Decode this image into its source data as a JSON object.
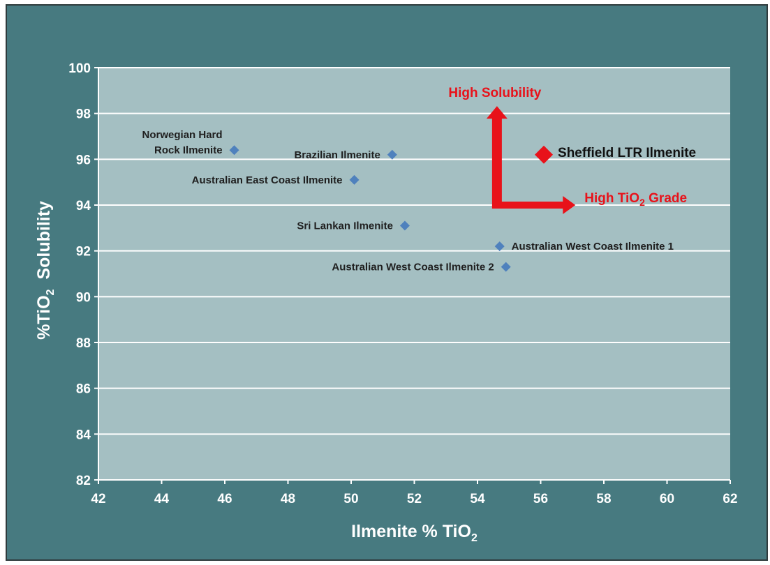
{
  "colors": {
    "background": "#477a80",
    "plot_area": "#a4bfc2",
    "gridline": "#ffffff",
    "point": "#4f81bd",
    "highlight": "#e8121a",
    "label_text": "#1f1f1f"
  },
  "chart_data": {
    "type": "scatter",
    "title": "",
    "xlabel": "Ilmenite % TiO",
    "xlabel_sub": "2",
    "ylabel": "%TiO",
    "ylabel_sub": "2",
    "ylabel_suffix": "Solubility",
    "xlim": [
      42,
      62
    ],
    "ylim": [
      82,
      100
    ],
    "x_ticks": [
      42,
      44,
      46,
      48,
      50,
      52,
      54,
      56,
      58,
      60,
      62
    ],
    "y_ticks": [
      82,
      84,
      86,
      88,
      90,
      92,
      94,
      96,
      98,
      100
    ],
    "grid": true,
    "points": [
      {
        "label": [
          "Norwegian Hard",
          "Rock Ilmenite"
        ],
        "x": 46.3,
        "y": 96.4,
        "marker": "diamond",
        "color": "#4f81bd",
        "label_pos": "left"
      },
      {
        "label": [
          "Brazilian Ilmenite"
        ],
        "x": 51.3,
        "y": 96.2,
        "marker": "diamond",
        "color": "#4f81bd",
        "label_pos": "left"
      },
      {
        "label": [
          "Australian East Coast Ilmenite"
        ],
        "x": 50.1,
        "y": 95.1,
        "marker": "diamond",
        "color": "#4f81bd",
        "label_pos": "left"
      },
      {
        "label": [
          "Sri Lankan Ilmenite"
        ],
        "x": 51.7,
        "y": 93.1,
        "marker": "diamond",
        "color": "#4f81bd",
        "label_pos": "left"
      },
      {
        "label": [
          "Australian West Coast Ilmenite 1"
        ],
        "x": 54.7,
        "y": 92.2,
        "marker": "diamond",
        "color": "#4f81bd",
        "label_pos": "right"
      },
      {
        "label": [
          "Australian West Coast Ilmenite 2"
        ],
        "x": 54.9,
        "y": 91.3,
        "marker": "diamond",
        "color": "#4f81bd",
        "label_pos": "left"
      },
      {
        "label": [
          "Sheffield LTR Ilmenite"
        ],
        "x": 56.1,
        "y": 96.2,
        "marker": "diamond-large",
        "color": "#e8121a",
        "label_pos": "right"
      }
    ],
    "annotations": {
      "up_arrow_label": "High Solubility",
      "right_arrow_label": "High TiO",
      "right_arrow_label_sub": "2",
      "right_arrow_label_suffix": " Grade"
    }
  }
}
